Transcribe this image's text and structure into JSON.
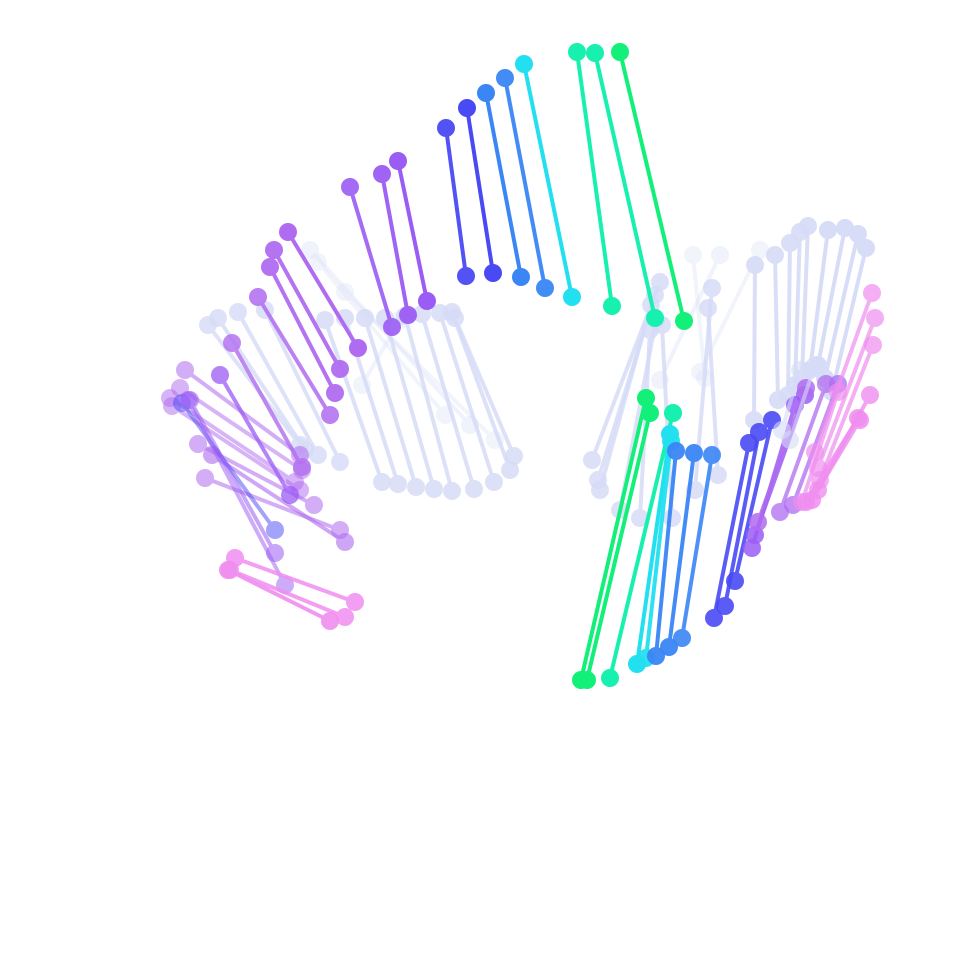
{
  "artwork": {
    "kind": "generative dumbbell helix",
    "background": "#ffffff",
    "color_key": {
      "far_dim": "#d6dcf7",
      "violet": "#9b5cf5",
      "purple": "#b06cf0",
      "pink": "#f08ef0",
      "blue": "#4a4af5",
      "azure": "#3a86f5",
      "cyan": "#22e0f0",
      "mint": "#18f0b0",
      "green": "#12f07a"
    }
  }
}
